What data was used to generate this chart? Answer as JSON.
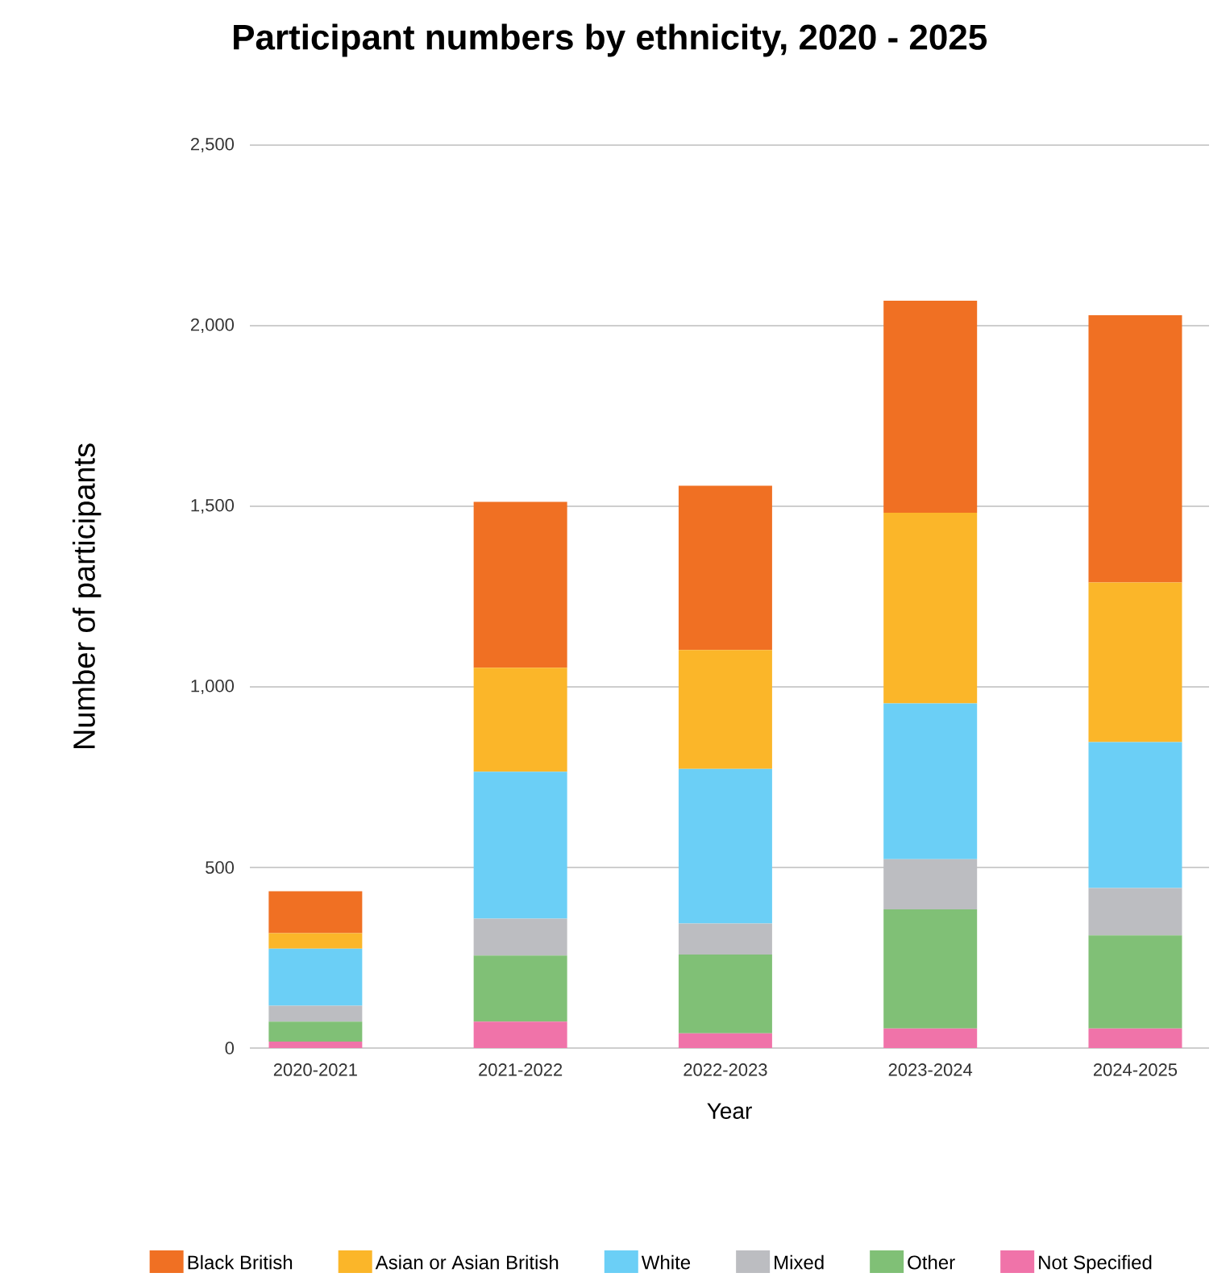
{
  "chart_data": {
    "type": "bar",
    "stacked": true,
    "title": "Participant numbers by ethnicity, 2020 - 2025",
    "xlabel": "Year",
    "ylabel": "Number of participants",
    "categories": [
      "2020-2021",
      "2021-2022",
      "2022-2023",
      "2023-2024",
      "2024-2025"
    ],
    "series": [
      {
        "name": "Not Specified",
        "color": "#f073a9",
        "values": [
          18,
          73,
          41,
          54,
          54
        ]
      },
      {
        "name": "Other",
        "color": "#80c076",
        "values": [
          55,
          183,
          218,
          330,
          258
        ]
      },
      {
        "name": "Mixed",
        "color": "#bcbdc1",
        "values": [
          44,
          102,
          86,
          139,
          131
        ]
      },
      {
        "name": "White",
        "color": "#6bcff6",
        "values": [
          158,
          407,
          428,
          431,
          404
        ]
      },
      {
        "name": "Asian or Asian British",
        "color": "#fbb629",
        "values": [
          43,
          288,
          329,
          528,
          442
        ]
      },
      {
        "name": "Black British",
        "color": "#f07023",
        "values": [
          116,
          459,
          455,
          587,
          740
        ]
      }
    ],
    "ylim": [
      0,
      2500
    ],
    "yticks": [
      0,
      500,
      {
        "value": 1000,
        "label": "1,000"
      },
      {
        "value": 1500,
        "label": "1,500"
      },
      {
        "value": 2000,
        "label": "2,000"
      },
      {
        "value": 2500,
        "label": "2,500"
      }
    ],
    "grid": "y",
    "legend": "bottom"
  }
}
